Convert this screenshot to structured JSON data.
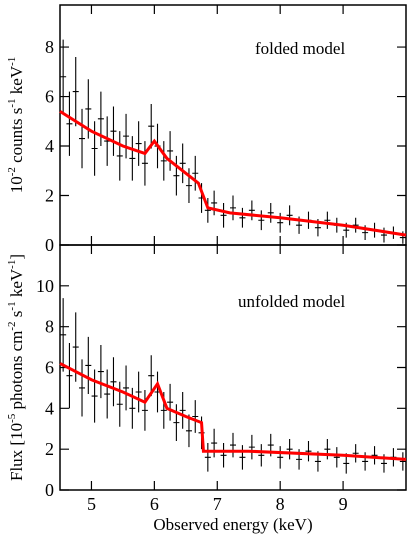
{
  "chart_data": [
    {
      "type": "errorbar",
      "annotation": "folded model",
      "ylabel": [
        "10",
        "-2",
        " counts s",
        "-1",
        " keV",
        "-1"
      ],
      "xlim": [
        4.5,
        10
      ],
      "xticks": [
        5,
        6,
        7,
        8,
        9
      ],
      "show_xtick_labels": false,
      "ylim": [
        0,
        9.7
      ],
      "yticks": [
        0,
        2,
        4,
        6,
        8
      ],
      "point_color": "#000000",
      "points": {
        "x": [
          4.55,
          4.65,
          4.75,
          4.85,
          4.95,
          5.05,
          5.15,
          5.25,
          5.35,
          5.45,
          5.55,
          5.65,
          5.75,
          5.85,
          5.95,
          6.05,
          6.15,
          6.25,
          6.35,
          6.45,
          6.55,
          6.65,
          6.75,
          6.85,
          6.95,
          7.1,
          7.25,
          7.4,
          7.55,
          7.7,
          7.85,
          8.0,
          8.15,
          8.3,
          8.45,
          8.6,
          8.75,
          8.9,
          9.05,
          9.2,
          9.35,
          9.5,
          9.65,
          9.8,
          9.95
        ],
        "y": [
          6.8,
          4.9,
          6.2,
          4.3,
          5.5,
          3.9,
          5.1,
          4.2,
          4.6,
          3.6,
          4.4,
          3.5,
          4.1,
          3.3,
          4.8,
          4.0,
          3.4,
          3.8,
          2.8,
          3.3,
          2.4,
          2.9,
          1.9,
          1.4,
          1.7,
          1.2,
          1.5,
          1.1,
          1.4,
          1.0,
          1.3,
          0.9,
          1.2,
          0.8,
          1.0,
          0.7,
          1.0,
          0.8,
          0.6,
          0.8,
          0.5,
          0.6,
          0.4,
          0.5,
          0.3
        ],
        "yerr": [
          1.5,
          1.3,
          1.4,
          1.2,
          1.2,
          1.1,
          1.1,
          1.0,
          1.0,
          1.0,
          0.9,
          0.9,
          0.9,
          0.9,
          0.9,
          0.9,
          0.8,
          0.8,
          0.8,
          0.8,
          0.7,
          0.7,
          0.6,
          0.5,
          0.5,
          0.5,
          0.5,
          0.4,
          0.4,
          0.4,
          0.4,
          0.4,
          0.4,
          0.35,
          0.35,
          0.35,
          0.35,
          0.3,
          0.3,
          0.3,
          0.3,
          0.3,
          0.3,
          0.25,
          0.25
        ]
      },
      "model": {
        "color": "#ff0000",
        "x": [
          4.5,
          5.0,
          5.5,
          5.85,
          6.0,
          6.2,
          6.4,
          6.6,
          6.7,
          6.85,
          7.2,
          8.0,
          9.0,
          10.0
        ],
        "y": [
          5.4,
          4.6,
          4.0,
          3.7,
          4.2,
          3.5,
          3.1,
          2.7,
          2.5,
          1.5,
          1.3,
          1.1,
          0.8,
          0.4
        ]
      }
    },
    {
      "type": "errorbar",
      "annotation": "unfolded model",
      "ylabel": [
        "Flux [10",
        "-5",
        " photons cm",
        "-2",
        " s",
        "-1",
        " keV",
        "-1",
        "]"
      ],
      "xlabel": "Observed energy (keV)",
      "xlim": [
        4.5,
        10
      ],
      "xticks": [
        5,
        6,
        7,
        8,
        9
      ],
      "show_xtick_labels": true,
      "ylim": [
        0,
        12
      ],
      "yticks": [
        0,
        2,
        4,
        6,
        8,
        10
      ],
      "point_color": "#000000",
      "points": {
        "x": [
          4.55,
          4.65,
          4.75,
          4.85,
          4.95,
          5.05,
          5.15,
          5.25,
          5.35,
          5.45,
          5.55,
          5.65,
          5.75,
          5.85,
          5.95,
          6.05,
          6.15,
          6.25,
          6.35,
          6.45,
          6.55,
          6.65,
          6.75,
          6.85,
          6.95,
          7.1,
          7.25,
          7.4,
          7.55,
          7.7,
          7.85,
          8.0,
          8.15,
          8.3,
          8.45,
          8.6,
          8.75,
          8.9,
          9.05,
          9.2,
          9.35,
          9.5,
          9.65,
          9.8,
          9.95
        ],
        "y": [
          7.6,
          5.6,
          7.0,
          5.0,
          6.1,
          4.6,
          5.8,
          4.7,
          5.3,
          4.2,
          5.0,
          4.0,
          4.8,
          3.9,
          5.6,
          4.8,
          3.9,
          4.3,
          3.3,
          3.9,
          2.9,
          3.6,
          2.8,
          1.6,
          2.3,
          1.7,
          2.2,
          1.6,
          2.1,
          1.7,
          2.2,
          1.6,
          2.0,
          1.5,
          1.9,
          1.4,
          2.0,
          1.6,
          1.3,
          1.8,
          1.4,
          1.7,
          1.3,
          1.6,
          1.4
        ],
        "yerr": [
          1.8,
          1.6,
          1.7,
          1.4,
          1.4,
          1.3,
          1.3,
          1.2,
          1.2,
          1.1,
          1.1,
          1.0,
          1.0,
          1.0,
          1.0,
          1.0,
          0.9,
          0.9,
          0.9,
          0.9,
          0.8,
          0.8,
          0.8,
          0.7,
          0.7,
          0.6,
          0.6,
          0.6,
          0.6,
          0.55,
          0.55,
          0.55,
          0.5,
          0.5,
          0.5,
          0.5,
          0.5,
          0.5,
          0.5,
          0.45,
          0.45,
          0.45,
          0.45,
          0.45,
          0.45
        ]
      },
      "model": {
        "color": "#ff0000",
        "x": [
          4.5,
          5.0,
          5.5,
          5.85,
          6.05,
          6.2,
          6.5,
          6.75,
          6.78,
          7.5,
          9.0,
          10.0
        ],
        "y": [
          6.2,
          5.4,
          4.8,
          4.3,
          5.2,
          4.0,
          3.6,
          3.3,
          1.9,
          1.9,
          1.7,
          1.5
        ]
      }
    }
  ]
}
